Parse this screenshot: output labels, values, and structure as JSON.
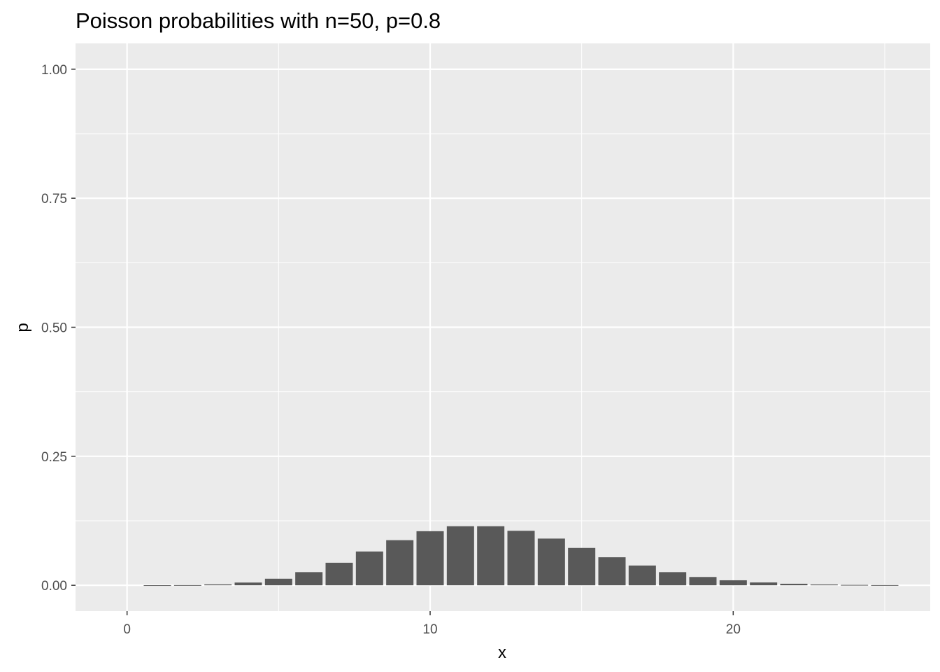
{
  "chart_data": {
    "type": "bar",
    "title": "Poisson probabilities with n=50, p=0.8",
    "xlabel": "x",
    "ylabel": "p",
    "x": [
      1,
      2,
      3,
      4,
      5,
      6,
      7,
      8,
      9,
      10,
      11,
      12,
      13,
      14,
      15,
      16,
      17,
      18,
      19,
      20,
      21,
      22,
      23,
      24,
      25
    ],
    "values": [
      0.0001,
      0.0004,
      0.0018,
      0.0053,
      0.0127,
      0.0255,
      0.0437,
      0.0655,
      0.0874,
      0.1048,
      0.1144,
      0.1144,
      0.1056,
      0.0905,
      0.0724,
      0.0543,
      0.0383,
      0.0255,
      0.0161,
      0.0097,
      0.0055,
      0.003,
      0.0016,
      0.0008,
      0.0004
    ],
    "xlim": [
      -1.7,
      26.5
    ],
    "ylim": [
      -0.05,
      1.05
    ],
    "x_ticks": [
      0,
      10,
      20
    ],
    "x_tick_labels": [
      "0",
      "10",
      "20"
    ],
    "y_ticks": [
      0,
      0.25,
      0.5,
      0.75,
      1
    ],
    "y_tick_labels": [
      "0.00",
      "0.25",
      "0.50",
      "0.75",
      "1.00"
    ],
    "grid": true,
    "legend": "none",
    "colors": {
      "bar": "#595959",
      "panel": "#ebebeb",
      "grid": "#ffffff"
    }
  }
}
